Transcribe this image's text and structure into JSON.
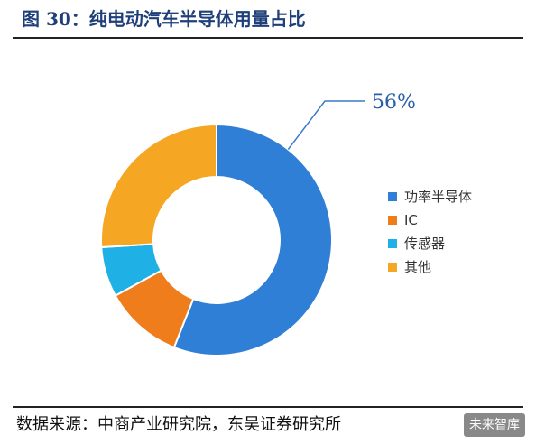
{
  "figure": {
    "title": "图 30：纯电动汽车半导体用量占比",
    "source": "数据来源：中商产业研究院，东吴证券研究所",
    "watermark": "未来智库"
  },
  "chart_data": {
    "type": "pie",
    "donut": true,
    "categories": [
      "功率半导体",
      "IC",
      "传感器",
      "其他"
    ],
    "values": [
      56,
      11,
      7,
      26
    ],
    "unit": "%",
    "colors": [
      "#2f7fd6",
      "#f07d1b",
      "#1fb0e6",
      "#f5a623"
    ],
    "annotations": [
      {
        "category": "功率半导体",
        "text": "56%"
      }
    ],
    "legend": "right",
    "title": ""
  }
}
